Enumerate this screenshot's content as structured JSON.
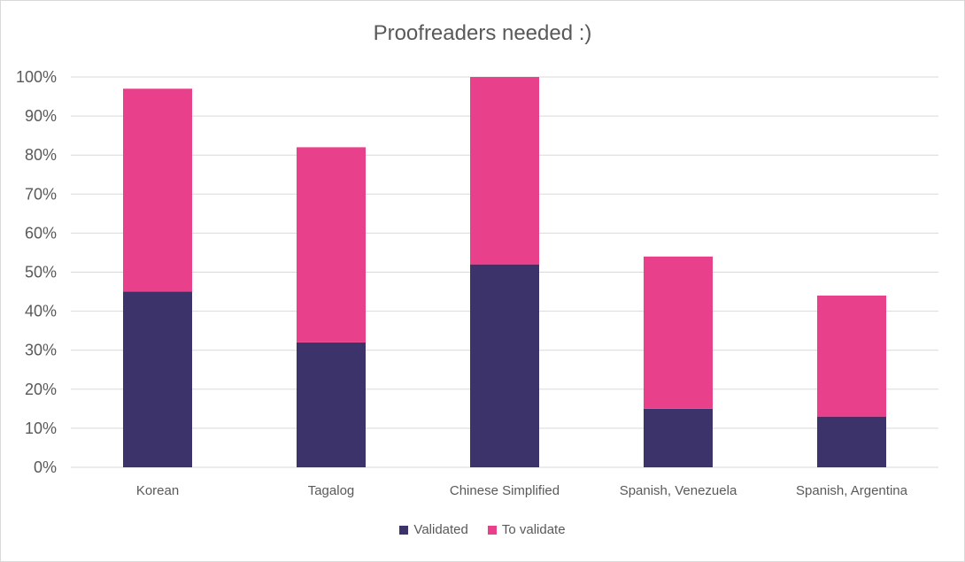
{
  "chart_data": {
    "type": "bar",
    "stacked": true,
    "title": "Proofreaders needed :)",
    "categories": [
      "Korean",
      "Tagalog",
      "Chinese Simplified",
      "Spanish, Venezuela",
      "Spanish, Argentina"
    ],
    "series": [
      {
        "name": "Validated",
        "color": "#3b3369",
        "values": [
          45,
          32,
          52,
          15,
          13
        ]
      },
      {
        "name": "To validate",
        "color": "#e8408a",
        "values": [
          52,
          50,
          48,
          39,
          31
        ]
      }
    ],
    "yticks": [
      "0%",
      "10%",
      "20%",
      "30%",
      "40%",
      "50%",
      "60%",
      "70%",
      "80%",
      "90%",
      "100%"
    ],
    "ylim": [
      0,
      100
    ],
    "grid": true,
    "legend_position": "bottom"
  }
}
